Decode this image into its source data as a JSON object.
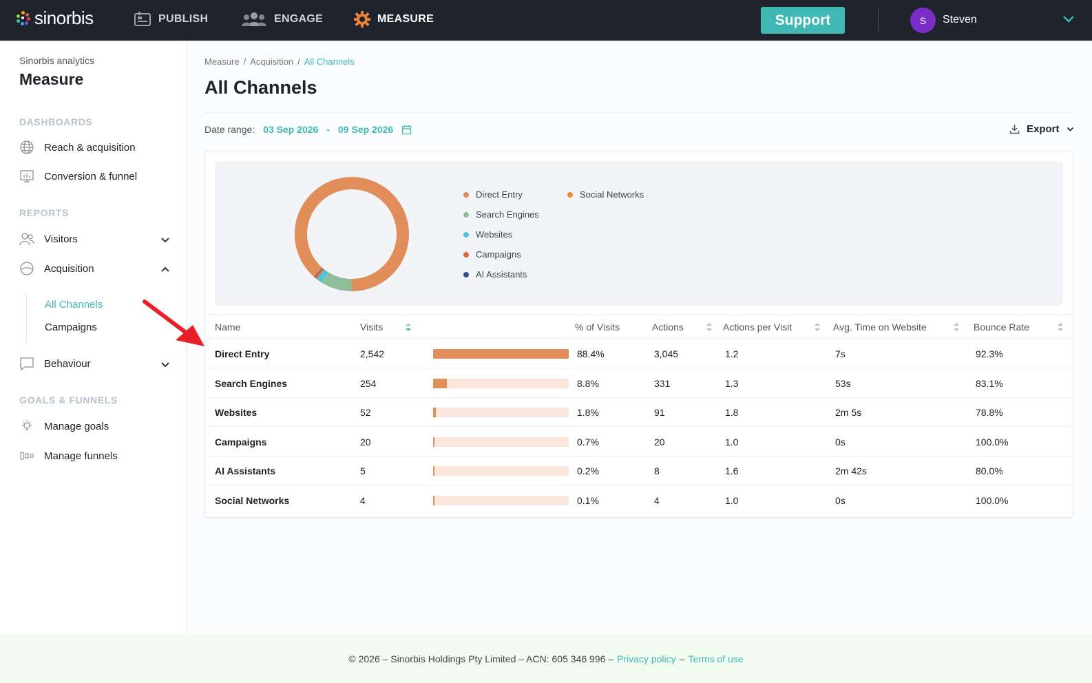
{
  "topbar": {
    "logo_text": "sinorbis",
    "nav": [
      {
        "label": "PUBLISH",
        "icon": "publish-icon"
      },
      {
        "label": "ENGAGE",
        "icon": "users-icon"
      },
      {
        "label": "MEASURE",
        "icon": "gear-icon"
      }
    ],
    "support_label": "Support",
    "user": {
      "initial": "S",
      "name": "Steven",
      "avatar_color": "#7a2ec7"
    }
  },
  "sidebar": {
    "subtitle": "Sinorbis analytics",
    "title": "Measure",
    "sections": {
      "dashboards": "DASHBOARDS",
      "reports": "REPORTS",
      "goals": "GOALS & FUNNELS"
    },
    "dashboards": [
      "Reach & acquisition",
      "Conversion & funnel"
    ],
    "reports": [
      "Visitors",
      "Acquisition",
      "Behaviour"
    ],
    "acquisition_sub": [
      "All Channels",
      "Campaigns"
    ],
    "goals": [
      "Manage goals",
      "Manage funnels"
    ]
  },
  "breadcrumb": [
    "Measure",
    "Acquisition",
    "All Channels"
  ],
  "page_title": "All Channels",
  "date_range": {
    "label": "Date range:",
    "start": "03 Sep 2026",
    "separator": "-",
    "end": "09 Sep 2026"
  },
  "export_label": "Export",
  "legend": [
    {
      "name": "Direct Entry",
      "color": "#e08d5a"
    },
    {
      "name": "Search Engines",
      "color": "#8fbf9a"
    },
    {
      "name": "Websites",
      "color": "#4fc6cf"
    },
    {
      "name": "Campaigns",
      "color": "#e0683f"
    },
    {
      "name": "AI Assistants",
      "color": "#2f4f8f"
    },
    {
      "name": "Social Networks",
      "color": "#ef8a3a"
    }
  ],
  "table": {
    "headers": [
      "Name",
      "Visits",
      "% of Visits",
      "Actions",
      "Actions per Visit",
      "Avg. Time on Website",
      "Bounce Rate"
    ],
    "rows": [
      {
        "name": "Direct Entry",
        "visits": "2,542",
        "pct": "88.4%",
        "pct_value": 88.4,
        "actions": "3,045",
        "apv": "1.2",
        "time": "7s",
        "bounce": "92.3%"
      },
      {
        "name": "Search Engines",
        "visits": "254",
        "pct": "8.8%",
        "pct_value": 8.8,
        "actions": "331",
        "apv": "1.3",
        "time": "53s",
        "bounce": "83.1%"
      },
      {
        "name": "Websites",
        "visits": "52",
        "pct": "1.8%",
        "pct_value": 1.8,
        "actions": "91",
        "apv": "1.8",
        "time": "2m 5s",
        "bounce": "78.8%"
      },
      {
        "name": "Campaigns",
        "visits": "20",
        "pct": "0.7%",
        "pct_value": 0.7,
        "actions": "20",
        "apv": "1.0",
        "time": "0s",
        "bounce": "100.0%"
      },
      {
        "name": "AI Assistants",
        "visits": "5",
        "pct": "0.2%",
        "pct_value": 0.2,
        "actions": "8",
        "apv": "1.6",
        "time": "2m 42s",
        "bounce": "80.0%"
      },
      {
        "name": "Social Networks",
        "visits": "4",
        "pct": "0.1%",
        "pct_value": 0.1,
        "actions": "4",
        "apv": "1.0",
        "time": "0s",
        "bounce": "100.0%"
      }
    ]
  },
  "footer": {
    "text": "© 2026 – Sinorbis Holdings Pty Limited – ACN: 605 346 996 –",
    "privacy": "Privacy policy",
    "dash": "–",
    "terms": "Terms of use"
  },
  "colors": {
    "accent": "#3fb8b4",
    "topbar": "#1e232c",
    "bar": "#e08d5a",
    "bar_track": "#fbe6dc"
  }
}
